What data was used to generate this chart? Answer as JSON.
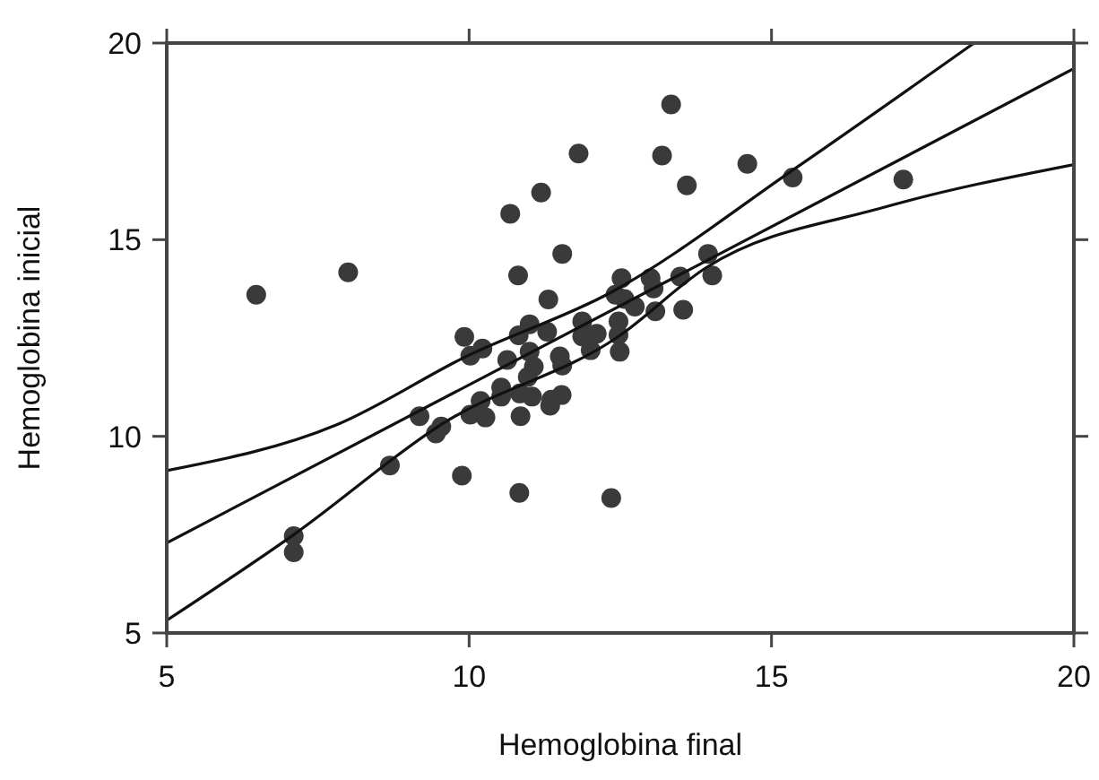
{
  "chart_data": {
    "type": "scatter",
    "xlabel": "Hemoglobina final",
    "ylabel": "Hemoglobina inicial",
    "xlim": [
      5,
      20
    ],
    "ylim": [
      5,
      20
    ],
    "xticks": [
      5,
      10,
      15,
      20
    ],
    "yticks": [
      5,
      10,
      15,
      20
    ],
    "grid": false,
    "series": [
      {
        "color": "#3a3a3a",
        "marker": "circle",
        "x": [
          6.48,
          8.0,
          11.81,
          11.19,
          10.68,
          11.54,
          10.81,
          11.31,
          9.92,
          10.02,
          10.22,
          10.63,
          10.82,
          11.0,
          11.29,
          11.0,
          11.07,
          10.97,
          11.5,
          11.54,
          10.53,
          10.53,
          10.84,
          11.04,
          11.36,
          11.53,
          11.34,
          10.19,
          10.02,
          10.27,
          10.85,
          9.18,
          9.54,
          9.45,
          8.69,
          9.88,
          10.83,
          12.35,
          7.1,
          7.1,
          13.34,
          13.19,
          14.6,
          13.6,
          15.35,
          17.18,
          13.95,
          14.02,
          13.49,
          13.0,
          13.05,
          12.52,
          12.42,
          12.57,
          12.74,
          13.08,
          13.54,
          12.47,
          12.47,
          12.49,
          11.87,
          11.87,
          12.11,
          12.01
        ],
        "values": [
          13.6,
          14.17,
          17.19,
          16.2,
          15.66,
          14.64,
          14.09,
          13.48,
          12.53,
          12.05,
          12.23,
          11.94,
          12.57,
          12.85,
          12.66,
          12.15,
          11.77,
          11.51,
          12.03,
          11.8,
          11.24,
          11.01,
          11.09,
          11.01,
          10.93,
          11.05,
          10.78,
          10.9,
          10.55,
          10.48,
          10.51,
          10.51,
          10.25,
          10.07,
          9.26,
          9.0,
          8.56,
          8.43,
          7.46,
          7.05,
          18.44,
          17.14,
          16.93,
          16.38,
          16.58,
          16.53,
          14.64,
          14.09,
          14.06,
          14.02,
          13.76,
          14.02,
          13.6,
          13.49,
          13.3,
          13.18,
          13.22,
          12.92,
          12.58,
          12.15,
          12.92,
          12.54,
          12.61,
          12.19
        ]
      },
      {
        "type": "line",
        "color": "#111111",
        "line_style": "solid",
        "x": [
          5,
          20
        ],
        "values": [
          7.29,
          19.35
        ]
      },
      {
        "type": "line",
        "color": "#111111",
        "line_style": "solid",
        "x": [
          5,
          7.82,
          9.95,
          12.37,
          15.38,
          18.35
        ],
        "values": [
          9.13,
          10.3,
          12.03,
          13.68,
          16.8,
          20
        ]
      },
      {
        "type": "line",
        "color": "#111111",
        "line_style": "solid",
        "x": [
          5,
          7.1,
          9.56,
          12.47,
          13.92,
          16.83,
          20
        ],
        "values": [
          5.32,
          7.5,
          10.32,
          12.54,
          14.29,
          15.81,
          16.91
        ]
      }
    ]
  }
}
